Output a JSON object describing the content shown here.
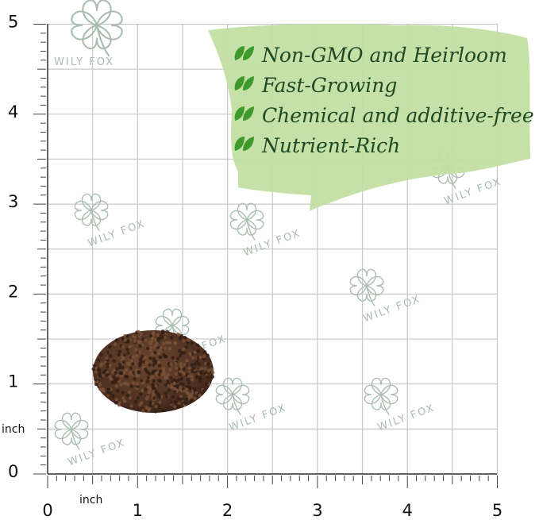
{
  "brand": "WILY FOX",
  "features": [
    "Non-GMO and Heirloom",
    "Fast-Growing",
    "Chemical and additive-free",
    "Nutrient-Rich"
  ],
  "ruler": {
    "unit_x": "inch",
    "unit_y": "inch",
    "x_numbers": [
      0,
      1,
      2,
      3,
      4,
      5
    ],
    "y_numbers": [
      0,
      1,
      2,
      3,
      4,
      5
    ]
  }
}
